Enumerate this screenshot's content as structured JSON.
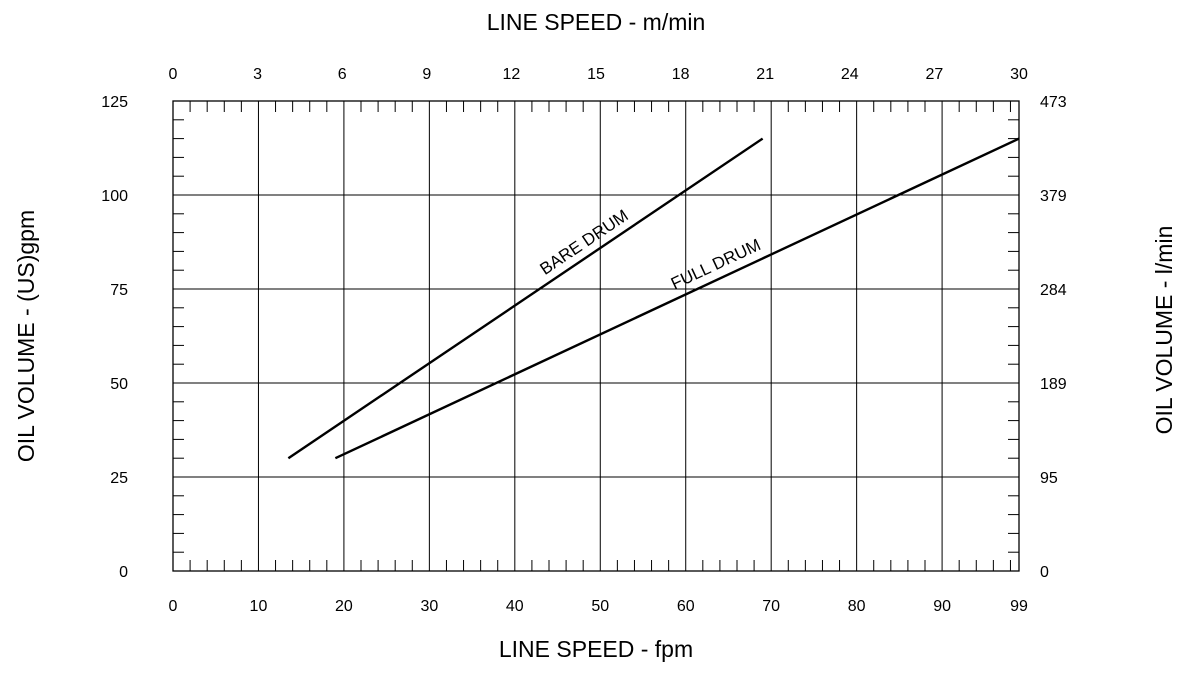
{
  "chart_data": {
    "type": "line",
    "title": "",
    "x_bottom": {
      "label": "LINE SPEED - fpm",
      "range": [
        0,
        99
      ],
      "ticks": [
        0,
        10,
        20,
        30,
        40,
        50,
        60,
        70,
        80,
        90,
        99
      ]
    },
    "x_top": {
      "label": "LINE SPEED - m/min",
      "range": [
        0,
        30
      ],
      "ticks": [
        0,
        3,
        6,
        9,
        12,
        15,
        18,
        21,
        24,
        27,
        30
      ]
    },
    "y_left": {
      "label": "OIL VOLUME - (US)gpm",
      "range": [
        0,
        125
      ],
      "ticks": [
        0,
        25,
        50,
        75,
        100,
        125
      ]
    },
    "y_right": {
      "label": "OIL VOLUME - l/min",
      "ticks": [
        {
          "at": 0,
          "label": "0"
        },
        {
          "at": 25,
          "label": "95"
        },
        {
          "at": 50,
          "label": "189"
        },
        {
          "at": 75,
          "label": "284"
        },
        {
          "at": 100,
          "label": "379"
        },
        {
          "at": 125,
          "label": "473"
        }
      ]
    },
    "grid": true,
    "series": [
      {
        "name": "BARE DRUM",
        "x": [
          13.5,
          69
        ],
        "y": [
          30,
          115
        ]
      },
      {
        "name": "FULL DRUM",
        "x": [
          19,
          99
        ],
        "y": [
          30,
          115
        ]
      }
    ]
  }
}
